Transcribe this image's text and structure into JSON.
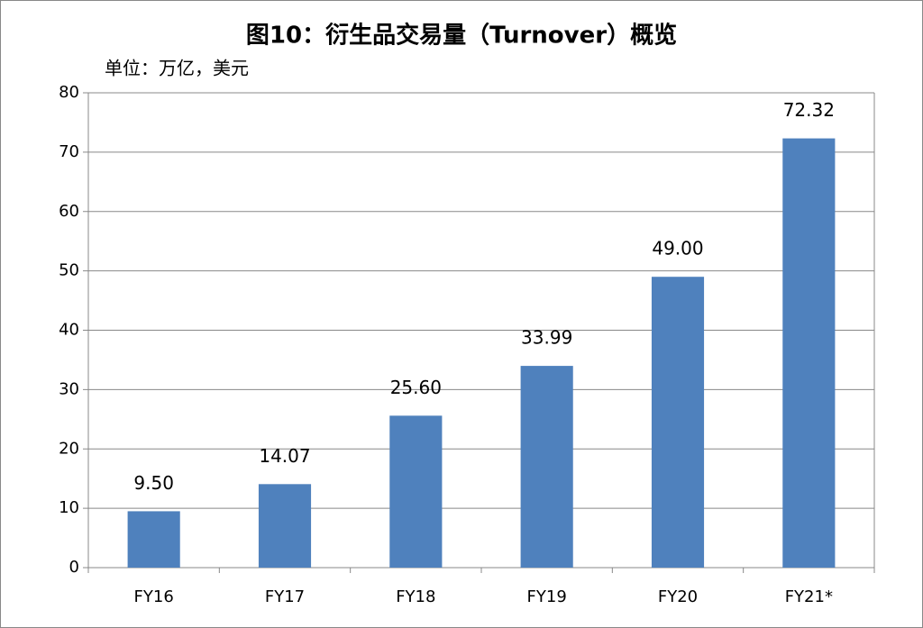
{
  "chart_data": {
    "type": "bar",
    "title": "图10：衍生品交易量（Turnover）概览",
    "subtitle": "单位：万亿，美元",
    "categories": [
      "FY16",
      "FY17",
      "FY18",
      "FY19",
      "FY20",
      "FY21*"
    ],
    "values": [
      9.5,
      14.07,
      25.6,
      33.99,
      49.0,
      72.32
    ],
    "value_labels": [
      "9.50",
      "14.07",
      "25.60",
      "33.99",
      "49.00",
      "72.32"
    ],
    "color": "#4f81bd",
    "ylim": [
      0,
      80
    ],
    "yticks": [
      0,
      10,
      20,
      30,
      40,
      50,
      60,
      70,
      80
    ],
    "grid": true
  }
}
